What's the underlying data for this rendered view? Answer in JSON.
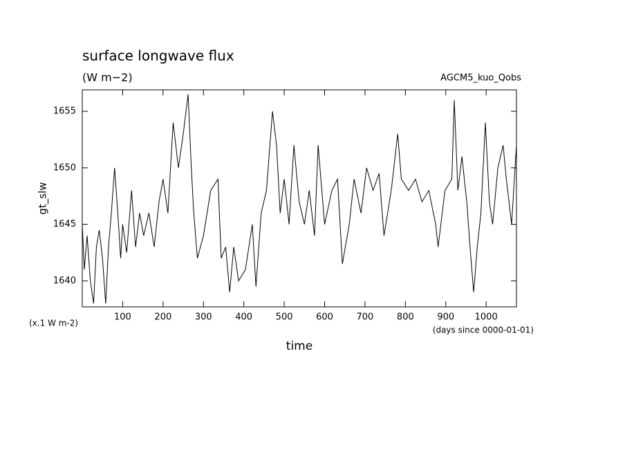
{
  "chart_data": {
    "type": "line",
    "title": "surface longwave flux",
    "subtitle": "(W m−2)",
    "annotation": "AGCM5_kuo_Qobs",
    "ylabel": "gt_slw",
    "yunit": "(x.1 W m-2)",
    "xlabel": "time",
    "xunit": "(days since 0000-01-01)",
    "color": "#000000",
    "x": [
      0,
      5,
      12,
      20,
      28,
      35,
      42,
      50,
      58,
      65,
      72,
      80,
      88,
      95,
      100,
      110,
      122,
      132,
      142,
      152,
      165,
      178,
      190,
      200,
      212,
      225,
      238,
      250,
      262,
      270,
      276,
      285,
      300,
      318,
      336,
      344,
      355,
      365,
      375,
      387,
      404,
      421,
      430,
      443,
      456,
      471,
      481,
      490,
      500,
      512,
      524,
      537,
      550,
      562,
      575,
      584,
      600,
      618,
      632,
      644,
      661,
      673,
      690,
      704,
      720,
      735,
      747,
      765,
      781,
      790,
      808,
      825,
      841,
      858,
      875,
      881,
      898,
      915,
      921,
      930,
      940,
      952,
      960,
      969,
      978,
      987,
      998,
      1008,
      1016,
      1029,
      1042,
      1050,
      1063,
      1075
    ],
    "values": [
      1645,
      1641,
      1644,
      1640,
      1638,
      1643,
      1644.5,
      1642,
      1638,
      1643,
      1646,
      1650,
      1646,
      1642,
      1645,
      1642.5,
      1648,
      1643,
      1646,
      1644,
      1646,
      1643,
      1647,
      1649,
      1646,
      1654,
      1650,
      1653,
      1656.5,
      1650,
      1646,
      1642,
      1644,
      1648,
      1649,
      1642,
      1643,
      1639,
      1643,
      1640,
      1641,
      1645,
      1639.5,
      1646,
      1648,
      1655,
      1652,
      1646,
      1649,
      1645,
      1652,
      1647,
      1645,
      1648,
      1644,
      1652,
      1645,
      1648,
      1649,
      1641.5,
      1645,
      1649,
      1646,
      1650,
      1648,
      1649.5,
      1644,
      1648,
      1653,
      1649,
      1648,
      1649,
      1647,
      1648,
      1645,
      1643,
      1648,
      1649,
      1656,
      1648,
      1651,
      1647,
      1643,
      1639,
      1643,
      1646,
      1654,
      1647,
      1645,
      1650,
      1652,
      1649,
      1645,
      1652
    ],
    "xlim": [
      0,
      1075
    ],
    "ylim": [
      1637.7,
      1656.9
    ],
    "xticks": [
      100,
      200,
      300,
      400,
      500,
      600,
      700,
      800,
      900,
      1000
    ],
    "yticks": [
      1640,
      1645,
      1650,
      1655
    ],
    "grid": false
  }
}
